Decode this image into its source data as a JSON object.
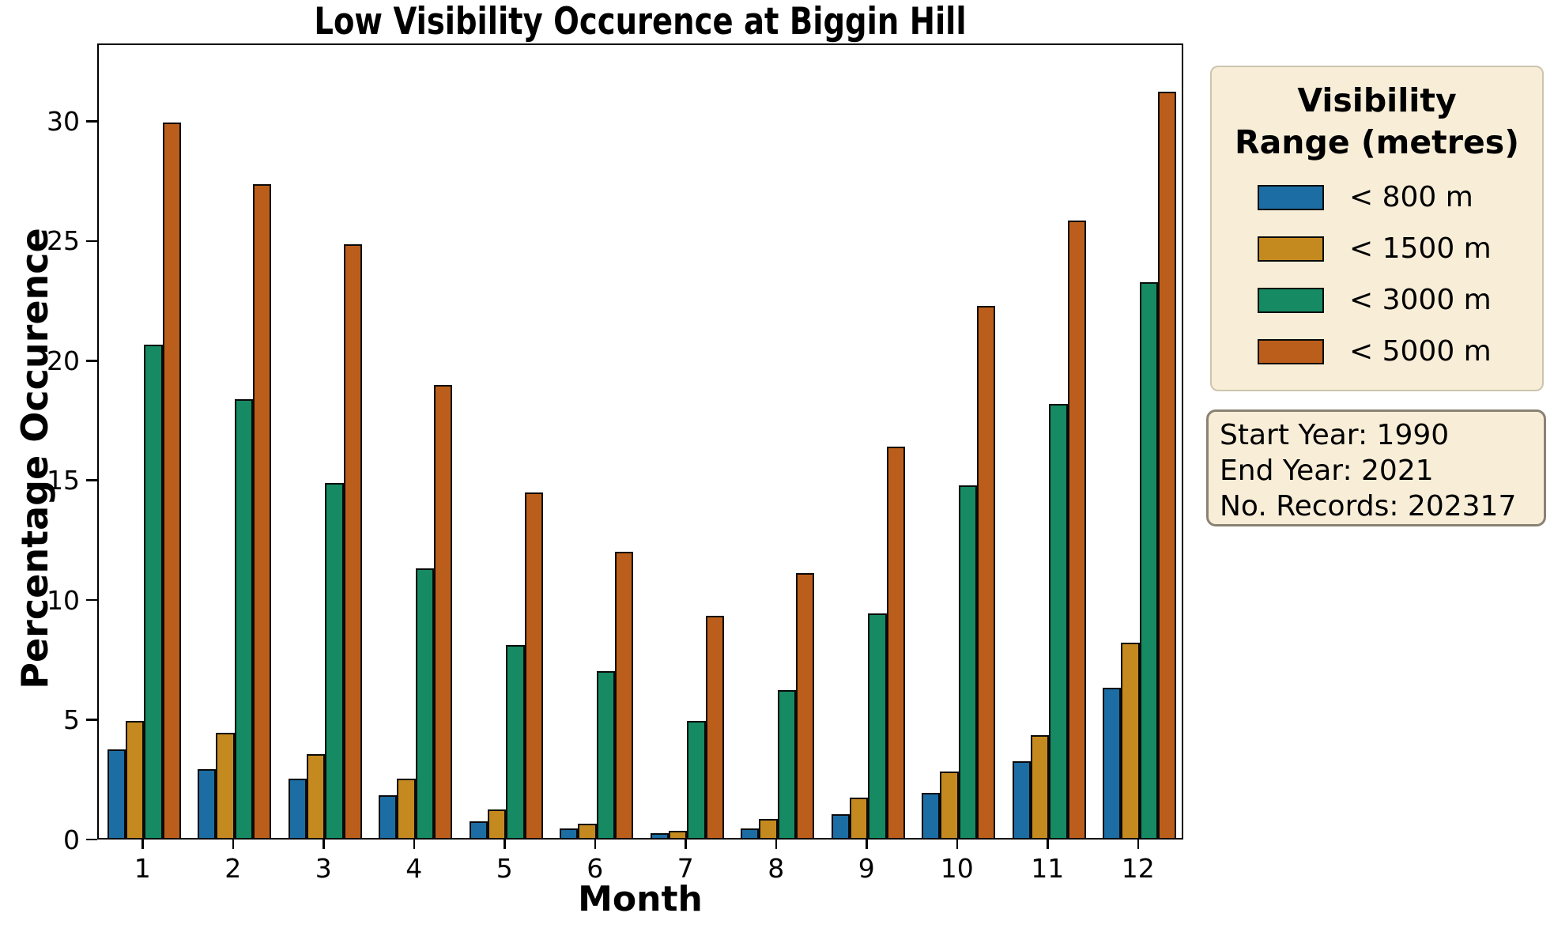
{
  "title": "Low Visibility Occurence at Biggin Hill",
  "xlabel": "Month",
  "ylabel": "Percentage Occurence",
  "legend": {
    "title_line1": "Visibility",
    "title_line2": "Range (metres)",
    "items": [
      {
        "label": "< 800 m",
        "color": "#1c6da4"
      },
      {
        "label": "< 1500 m",
        "color": "#c58a1f"
      },
      {
        "label": "< 3000 m",
        "color": "#158a63"
      },
      {
        "label": "< 5000 m",
        "color": "#bc5e1b"
      }
    ]
  },
  "info_box": {
    "line1": "Start Year: 1990",
    "line2": "End Year: 2021",
    "line3": "No. Records: 202317"
  },
  "chart_data": {
    "type": "bar",
    "title": "Low Visibility Occurence at Biggin Hill",
    "xlabel": "Month",
    "ylabel": "Percentage Occurence",
    "categories": [
      "1",
      "2",
      "3",
      "4",
      "5",
      "6",
      "7",
      "8",
      "9",
      "10",
      "11",
      "12"
    ],
    "series": [
      {
        "name": "< 800 m",
        "color": "#1c6da4",
        "values": [
          3.7,
          2.9,
          2.5,
          1.8,
          0.7,
          0.4,
          0.2,
          0.4,
          1.0,
          1.9,
          3.2,
          6.3
        ]
      },
      {
        "name": "< 1500 m",
        "color": "#c58a1f",
        "values": [
          4.9,
          4.4,
          3.5,
          2.5,
          1.2,
          0.6,
          0.3,
          0.8,
          1.7,
          2.8,
          4.3,
          8.2
        ]
      },
      {
        "name": "< 3000 m",
        "color": "#158a63",
        "values": [
          20.7,
          18.4,
          14.9,
          11.3,
          8.1,
          7.0,
          4.9,
          6.2,
          9.4,
          14.8,
          18.2,
          23.3
        ]
      },
      {
        "name": "< 5000 m",
        "color": "#bc5e1b",
        "values": [
          30.0,
          27.4,
          24.9,
          19.0,
          14.5,
          12.0,
          9.3,
          11.1,
          16.4,
          22.3,
          25.9,
          31.3
        ]
      }
    ],
    "ylim": [
      0,
      33.25
    ],
    "yticks": [
      0,
      5,
      10,
      15,
      20,
      25,
      30
    ],
    "grid": false,
    "legend_position": "outside-right",
    "bar_edge_color": "#0a0a0a"
  }
}
